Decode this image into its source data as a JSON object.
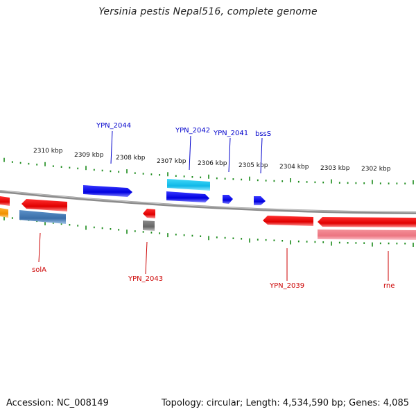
{
  "title": "Yersinia pestis Nepal516, complete genome",
  "footer": {
    "accession": "Accession: NC_008149",
    "topology": "Topology: circular; Length: 4,534,590 bp; Genes: 4,085"
  },
  "colors": {
    "forward_gene": "#0000ee",
    "forward_light": "#22c8ee",
    "reverse_gene": "#ee0000",
    "reverse_light": "#f08088",
    "reverse_blue": "#4a7fb5",
    "orange": "#f59a10",
    "gray_gene": "#777777",
    "tick": "#1a8a1a",
    "backbone": "#888888",
    "forward_label": "#0000cc",
    "reverse_label": "#cc0000"
  },
  "scale_labels": [
    "2310 kbp",
    "2309 kbp",
    "2308 kbp",
    "2307 kbp",
    "2306 kbp",
    "2305 kbp",
    "2304 kbp",
    "2303 kbp",
    "2302 kbp"
  ],
  "forward_gene_labels": [
    "YPN_2044",
    "YPN_2042",
    "YPN_2041",
    "bssS"
  ],
  "reverse_gene_labels": [
    "solA",
    "YPN_2043",
    "YPN_2039",
    "rne"
  ]
}
